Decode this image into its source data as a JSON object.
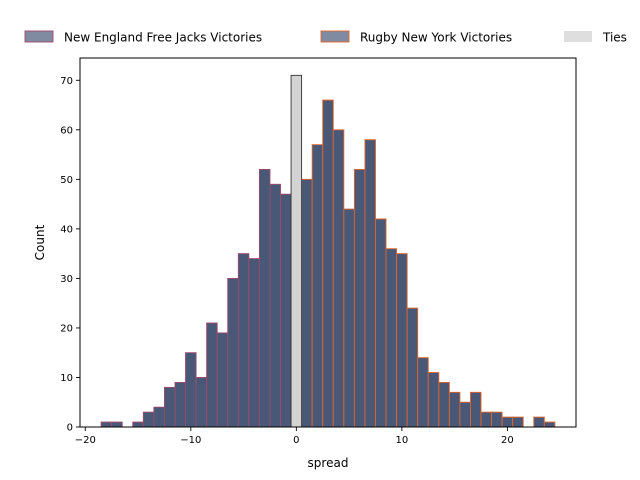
{
  "chart_data": {
    "type": "bar",
    "xlabel": "spread",
    "ylabel": "Count",
    "xlim": [
      -20.5,
      26.5
    ],
    "ylim": [
      0,
      74.5
    ],
    "xticks": [
      -20,
      -10,
      0,
      10,
      20
    ],
    "yticks": [
      0,
      10,
      20,
      30,
      40,
      50,
      60,
      70
    ],
    "legend_position": "top, outside plot, horizontal",
    "colors": {
      "new_england_fill": "#4a5878",
      "new_england_edge": "#a04a6a",
      "rugby_ny_fill": "#4a5878",
      "rugby_ny_edge": "#e0652a",
      "ties_fill": "#d3d3d3",
      "ties_edge": "#333333"
    },
    "series": [
      {
        "name": "New England Free Jacks Victories",
        "key": "new_england",
        "x": [
          -18,
          -17,
          -15,
          -14,
          -13,
          -12,
          -11,
          -10,
          -9,
          -8,
          -7,
          -6,
          -5,
          -4,
          -3,
          -2,
          -1
        ],
        "values": [
          1,
          1,
          1,
          3,
          4,
          8,
          9,
          15,
          10,
          21,
          19,
          30,
          35,
          34,
          52,
          49,
          47
        ]
      },
      {
        "name": "Rugby New York Victories",
        "key": "rugby_ny",
        "x": [
          1,
          2,
          3,
          4,
          5,
          6,
          7,
          8,
          9,
          10,
          11,
          12,
          13,
          14,
          15,
          16,
          17,
          18,
          19,
          20,
          21,
          23,
          24
        ],
        "values": [
          50,
          57,
          66,
          60,
          44,
          52,
          58,
          42,
          36,
          35,
          24,
          14,
          11,
          9,
          7,
          5,
          7,
          3,
          3,
          2,
          2,
          2,
          1
        ]
      },
      {
        "name": "Ties",
        "key": "ties",
        "x": [
          0
        ],
        "values": [
          71
        ]
      }
    ]
  }
}
